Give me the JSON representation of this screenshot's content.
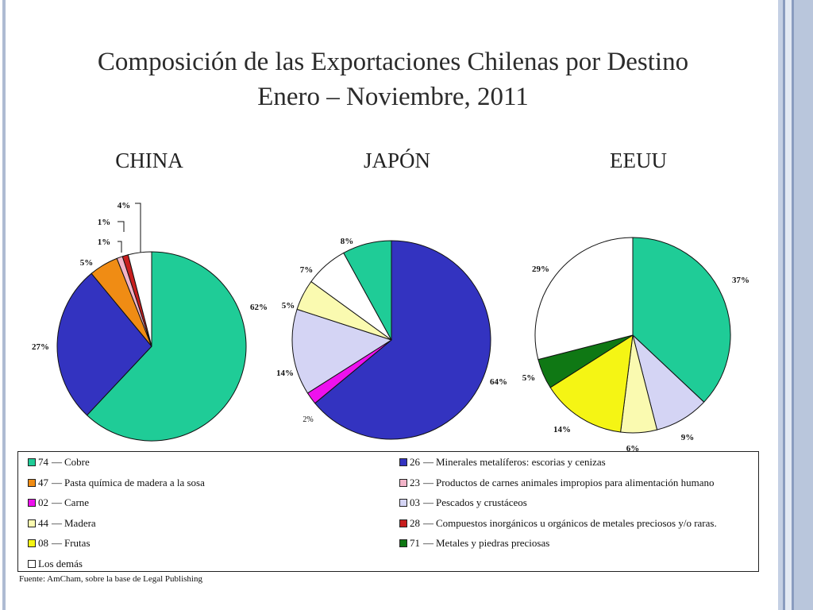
{
  "slide": {
    "title_line1": "Composición de las Exportaciones Chilenas por Destino",
    "title_line2": "Enero – Noviembre, 2011",
    "source": "Fuente: AmCham, sobre la base de Legal Publishing"
  },
  "chart_data": [
    {
      "type": "pie",
      "title": "CHINA",
      "slices": [
        {
          "category": "74",
          "value": 62,
          "label": "62%"
        },
        {
          "category": "26",
          "value": 27,
          "label": "27%"
        },
        {
          "category": "47",
          "value": 5,
          "label": "5%"
        },
        {
          "category": "23",
          "value": 1,
          "label": "1%"
        },
        {
          "category": "28",
          "value": 1,
          "label": "1%"
        },
        {
          "category": "rest",
          "value": 4,
          "label": "4%"
        }
      ]
    },
    {
      "type": "pie",
      "title": "JAPÓN",
      "slices": [
        {
          "category": "26",
          "value": 64,
          "label": "64%"
        },
        {
          "category": "02",
          "value": 2,
          "label": "2%"
        },
        {
          "category": "03",
          "value": 14,
          "label": "14%"
        },
        {
          "category": "44",
          "value": 5,
          "label": "5%"
        },
        {
          "category": "rest",
          "value": 7,
          "label": "7%"
        },
        {
          "category": "74",
          "value": 8,
          "label": "8%"
        }
      ]
    },
    {
      "type": "pie",
      "title": "EEUU",
      "slices": [
        {
          "category": "74",
          "value": 37,
          "label": "37%"
        },
        {
          "category": "03",
          "value": 9,
          "label": "9%"
        },
        {
          "category": "44",
          "value": 6,
          "label": "6%"
        },
        {
          "category": "08",
          "value": 14,
          "label": "14%"
        },
        {
          "category": "71",
          "value": 5,
          "label": "5%"
        },
        {
          "category": "rest",
          "value": 29,
          "label": "29%"
        }
      ]
    }
  ],
  "legend": [
    {
      "key": "74",
      "code": "74",
      "label": "Cobre",
      "color": "#1fcc97"
    },
    {
      "key": "26",
      "code": "26",
      "label": "Minerales metalíferos: escorias y cenizas",
      "color": "#3333c0"
    },
    {
      "key": "47",
      "code": "47",
      "label": "Pasta química de madera a la sosa",
      "color": "#f08c14"
    },
    {
      "key": "23",
      "code": "23",
      "label": "Productos de carnes animales impropios para alimentación humano",
      "color": "#f2b4c8"
    },
    {
      "key": "02",
      "code": "02",
      "label": "Carne",
      "color": "#ee11ee"
    },
    {
      "key": "03",
      "code": "03",
      "label": "Pescados y crustáceos",
      "color": "#d4d4f4"
    },
    {
      "key": "44",
      "code": "44",
      "label": "Madera",
      "color": "#fafab0"
    },
    {
      "key": "28",
      "code": "28",
      "label": "Compuestos inorgánicos u orgánicos de metales preciosos y/o raras.",
      "color": "#c81e1e"
    },
    {
      "key": "08",
      "code": "08",
      "label": "Frutas",
      "color": "#f5f514"
    },
    {
      "key": "71",
      "code": "71",
      "label": "Metales y piedras preciosas",
      "color": "#0f7814"
    },
    {
      "key": "rest",
      "code": "",
      "label": "Los demás",
      "color": "#ffffff"
    }
  ]
}
